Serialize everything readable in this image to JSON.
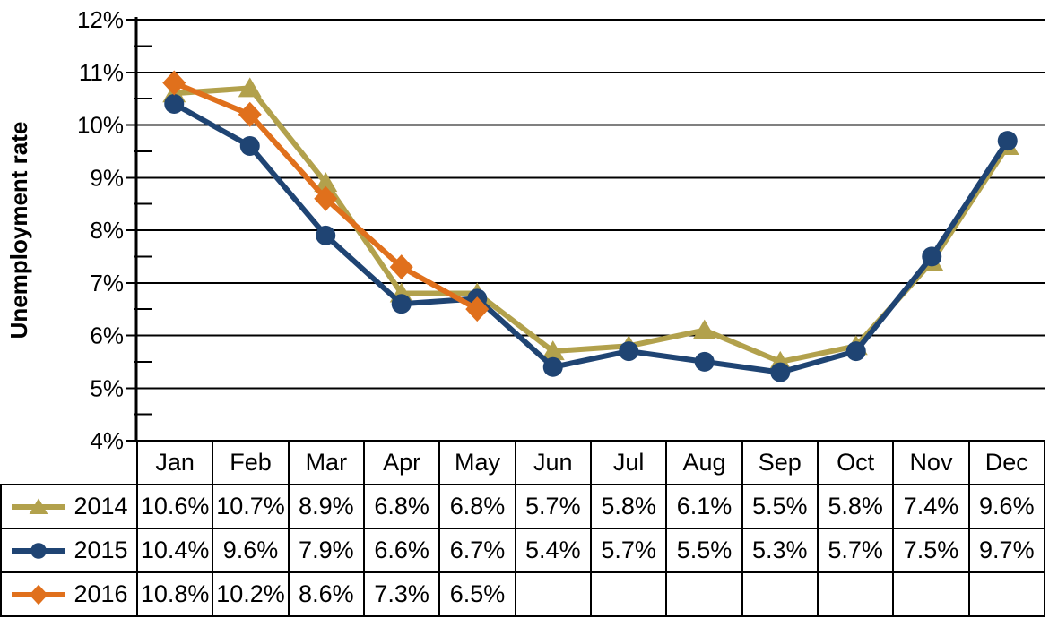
{
  "chart_data": {
    "type": "line",
    "title": "",
    "xlabel": "",
    "ylabel": "Unemployment rate",
    "ylim": [
      4,
      12
    ],
    "y_major_step": 1,
    "y_minor_step": 0.5,
    "y_tick_labels": [
      "12%",
      "11%",
      "10%",
      "9%",
      "8%",
      "7%",
      "6%",
      "5%",
      "4%"
    ],
    "categories": [
      "Jan",
      "Feb",
      "Mar",
      "Apr",
      "May",
      "Jun",
      "Jul",
      "Aug",
      "Sep",
      "Oct",
      "Nov",
      "Dec"
    ],
    "grid": "horizontal-major",
    "legend_position": "data-table-left",
    "series": [
      {
        "name": "2014",
        "color": "#B2A14C",
        "marker": "triangle",
        "values": [
          10.6,
          10.7,
          8.9,
          6.8,
          6.8,
          5.7,
          5.8,
          6.1,
          5.5,
          5.8,
          7.4,
          9.6
        ],
        "labels": [
          "10.6%",
          "10.7%",
          "8.9%",
          "6.8%",
          "6.8%",
          "5.7%",
          "5.8%",
          "6.1%",
          "5.5%",
          "5.8%",
          "7.4%",
          "9.6%"
        ]
      },
      {
        "name": "2015",
        "color": "#1F4473",
        "marker": "circle",
        "values": [
          10.4,
          9.6,
          7.9,
          6.6,
          6.7,
          5.4,
          5.7,
          5.5,
          5.3,
          5.7,
          7.5,
          9.7
        ],
        "labels": [
          "10.4%",
          "9.6%",
          "7.9%",
          "6.6%",
          "6.7%",
          "5.4%",
          "5.7%",
          "5.5%",
          "5.3%",
          "5.7%",
          "7.5%",
          "9.7%"
        ]
      },
      {
        "name": "2016",
        "color": "#E0701C",
        "marker": "diamond",
        "values": [
          10.8,
          10.2,
          8.6,
          7.3,
          6.5,
          null,
          null,
          null,
          null,
          null,
          null,
          null
        ],
        "labels": [
          "10.8%",
          "10.2%",
          "8.6%",
          "7.3%",
          "6.5%",
          "",
          "",
          "",
          "",
          "",
          "",
          ""
        ]
      }
    ]
  }
}
